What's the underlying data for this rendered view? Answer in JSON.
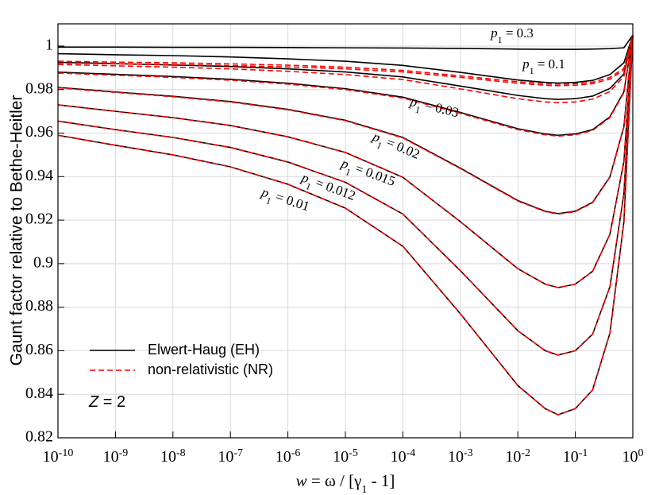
{
  "chart_data": {
    "type": "line",
    "y_label": "Gaunt factor relative to Bethe-Heitler",
    "x_label": {
      "var": "w",
      "text": " = ω / [γ",
      "sub": "1",
      "tail": " - 1]"
    },
    "annotation": {
      "var": "Z",
      "text": " = 2"
    },
    "log_x": true,
    "grid": true,
    "xlim": [
      1e-10,
      1
    ],
    "ylim": [
      0.82,
      1.0102
    ],
    "xticks": [
      {
        "value": 1e-10,
        "label": "10",
        "sup": "-10"
      },
      {
        "value": 1e-09,
        "label": "10",
        "sup": "-9"
      },
      {
        "value": 1e-08,
        "label": "10",
        "sup": "-8"
      },
      {
        "value": 1e-07,
        "label": "10",
        "sup": "-7"
      },
      {
        "value": 1e-06,
        "label": "10",
        "sup": "-6"
      },
      {
        "value": 1e-05,
        "label": "10",
        "sup": "-5"
      },
      {
        "value": 0.0001,
        "label": "10",
        "sup": "-4"
      },
      {
        "value": 0.001,
        "label": "10",
        "sup": "-3"
      },
      {
        "value": 0.01,
        "label": "10",
        "sup": "-2"
      },
      {
        "value": 0.1,
        "label": "10",
        "sup": "-1"
      },
      {
        "value": 1,
        "label": "10",
        "sup": "0"
      }
    ],
    "yticks": [
      0.82,
      0.84,
      0.86,
      0.88,
      0.9,
      0.92,
      0.94,
      0.96,
      0.98,
      1
    ],
    "x": [
      1e-10,
      1e-09,
      1e-08,
      1e-07,
      1e-06,
      1e-05,
      0.0001,
      0.001,
      0.01,
      0.03,
      0.05,
      0.1,
      0.2,
      0.4,
      0.7,
      1
    ],
    "series": [
      {
        "name": "Elwert-Haug (EH)",
        "color": "#000000",
        "dash": false,
        "curves": [
          {
            "label": {
              "var": "p",
              "sub": "1",
              "text": " = 0.3"
            },
            "values": [
              0.9995,
              0.9995,
              0.9994,
              0.9994,
              0.9993,
              0.9992,
              0.9991,
              0.9989,
              0.9986,
              0.9985,
              0.9985,
              0.9985,
              0.9986,
              0.9988,
              0.9992,
              1.005
            ]
          },
          {
            "label": {
              "var": "p",
              "sub": "1",
              "text": " = 0.1"
            },
            "values": [
              0.9965,
              0.996,
              0.9956,
              0.995,
              0.9941,
              0.993,
              0.9911,
              0.9879,
              0.9844,
              0.9833,
              0.983,
              0.9833,
              0.9842,
              0.9869,
              0.9923,
              1.005
            ]
          },
          {
            "values": [
              0.9925,
              0.9919,
              0.9913,
              0.9906,
              0.9895,
              0.9881,
              0.9858,
              0.9816,
              0.9773,
              0.9758,
              0.9755,
              0.9758,
              0.977,
              0.9805,
              0.9872,
              1.005
            ]
          },
          {
            "label": {
              "var": "p",
              "sub": "1",
              "text": " = 0.03"
            },
            "values": [
              0.988,
              0.987,
              0.986,
              0.9847,
              0.9829,
              0.9804,
              0.9765,
              0.9695,
              0.962,
              0.9596,
              0.959,
              0.9596,
              0.9616,
              0.9675,
              0.979,
              1.005
            ]
          },
          {
            "label": {
              "var": "p",
              "sub": "1",
              "text": " = 0.02"
            },
            "values": [
              0.981,
              0.9789,
              0.9769,
              0.9745,
              0.9709,
              0.9659,
              0.958,
              0.9439,
              0.929,
              0.9241,
              0.923,
              0.9241,
              0.9282,
              0.9399,
              0.963,
              1.005
            ]
          },
          {
            "label": {
              "var": "p",
              "sub": "1",
              "text": " = 0.015"
            },
            "values": [
              0.973,
              0.97,
              0.9671,
              0.9635,
              0.9583,
              0.9511,
              0.9397,
              0.9193,
              0.8977,
              0.8906,
              0.889,
              0.8906,
              0.8965,
              0.9135,
              0.947,
              1.005
            ]
          },
          {
            "label": {
              "var": "p",
              "sub": "1",
              "text": " = 0.012"
            },
            "values": [
              0.9655,
              0.9616,
              0.958,
              0.9534,
              0.9467,
              0.9374,
              0.9228,
              0.8968,
              0.8692,
              0.86,
              0.858,
              0.86,
              0.8676,
              0.8894,
              0.9322,
              1.005
            ]
          },
          {
            "label": {
              "var": "p",
              "sub": "1",
              "text": " = 0.01"
            },
            "values": [
              0.959,
              0.9544,
              0.95,
              0.9445,
              0.9365,
              0.9255,
              0.908,
              0.877,
              0.844,
              0.8334,
              0.8306,
              0.8334,
              0.842,
              0.8681,
              0.9192,
              1.005
            ]
          }
        ]
      },
      {
        "name": "non-relativistic (NR)",
        "color": "#ff0000",
        "dash": true,
        "curves": [
          {
            "values": [
              0.993,
              0.9926,
              0.9923,
              0.9918,
              0.9912,
              0.9903,
              0.9888,
              0.9863,
              0.9836,
              0.9827,
              0.9825,
              0.9827,
              0.9834,
              0.9856,
              0.9897,
              1.005
            ]
          },
          {
            "values": [
              0.9922,
              0.9918,
              0.9915,
              0.991,
              0.9904,
              0.9895,
              0.9881,
              0.9856,
              0.9829,
              0.982,
              0.9818,
              0.982,
              0.9827,
              0.9848,
              0.989,
              1.005
            ]
          },
          {
            "values": [
              0.9915,
              0.9909,
              0.9903,
              0.9895,
              0.9884,
              0.9869,
              0.9846,
              0.9803,
              0.9758,
              0.9743,
              0.974,
              0.9743,
              0.9756,
              0.9791,
              0.9861,
              1.005
            ]
          },
          {
            "values": [
              0.9876,
              0.9866,
              0.9856,
              0.9843,
              0.9825,
              0.98,
              0.9761,
              0.9691,
              0.9616,
              0.9592,
              0.9586,
              0.9592,
              0.9612,
              0.9671,
              0.9786,
              1.005
            ]
          },
          {
            "values": [
              0.9808,
              0.9787,
              0.9767,
              0.9743,
              0.9707,
              0.9657,
              0.9578,
              0.9437,
              0.9288,
              0.9239,
              0.9228,
              0.9239,
              0.928,
              0.9397,
              0.9628,
              1.005
            ]
          },
          {
            "values": [
              0.973,
              0.97,
              0.9671,
              0.9635,
              0.9583,
              0.9511,
              0.9397,
              0.9193,
              0.8977,
              0.8906,
              0.889,
              0.8906,
              0.8965,
              0.9135,
              0.947,
              1.005
            ]
          },
          {
            "values": [
              0.9655,
              0.9616,
              0.958,
              0.9534,
              0.9467,
              0.9374,
              0.9228,
              0.8968,
              0.8692,
              0.86,
              0.858,
              0.86,
              0.8676,
              0.8894,
              0.9322,
              1.005
            ]
          },
          {
            "values": [
              0.959,
              0.9544,
              0.95,
              0.9445,
              0.9365,
              0.9255,
              0.908,
              0.877,
              0.844,
              0.8334,
              0.8306,
              0.8334,
              0.842,
              0.8681,
              0.9192,
              1.005
            ]
          }
        ]
      }
    ]
  }
}
